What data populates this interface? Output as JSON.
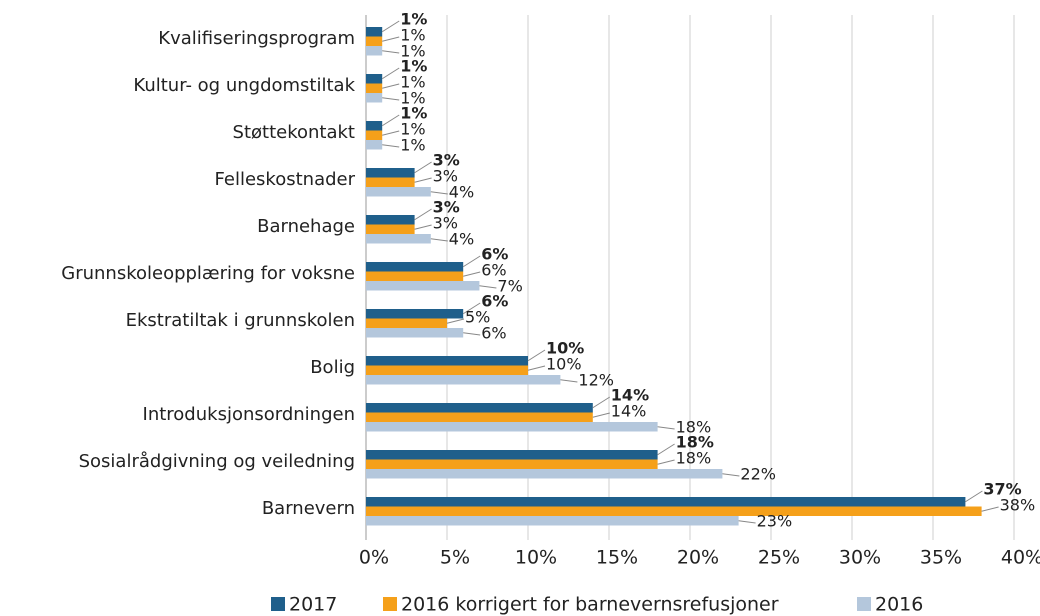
{
  "chart_data": {
    "type": "bar",
    "orientation": "horizontal",
    "categories": [
      "Kvalifiseringsprogram",
      "Kultur- og ungdomstiltak",
      "Støttekontakt",
      "Felleskostnader",
      "Barnehage",
      "Grunnskoleopplæring for voksne",
      "Ekstratiltak i grunnskolen",
      "Bolig",
      "Introduksjonsordningen",
      "Sosialrådgivning og veiledning",
      "Barnevern"
    ],
    "series": [
      {
        "name": "2017",
        "color": "#1f5f8b",
        "values": [
          1,
          1,
          1,
          3,
          3,
          6,
          6,
          10,
          14,
          18,
          37
        ],
        "value_labels": [
          "1%",
          "1%",
          "1%",
          "3%",
          "3%",
          "6%",
          "6%",
          "10%",
          "14%",
          "18%",
          "37%"
        ]
      },
      {
        "name": "2016 korrigert for barnevernsrefusjoner",
        "color": "#f5a01a",
        "values": [
          1,
          1,
          1,
          3,
          3,
          6,
          5,
          10,
          14,
          18,
          38
        ],
        "value_labels": [
          "1%",
          "1%",
          "1%",
          "3%",
          "3%",
          "6%",
          "5%",
          "10%",
          "14%",
          "18%",
          "38%"
        ]
      },
      {
        "name": "2016",
        "color": "#b4c7dc",
        "values": [
          1,
          1,
          1,
          4,
          4,
          7,
          6,
          12,
          18,
          22,
          23
        ],
        "value_labels": [
          "1%",
          "1%",
          "1%",
          "4%",
          "4%",
          "7%",
          "6%",
          "12%",
          "18%",
          "22%",
          "23%"
        ]
      }
    ],
    "xlim": [
      0,
      40
    ],
    "xticks": [
      {
        "value": 0,
        "label": "0%"
      },
      {
        "value": 5,
        "label": "5%"
      },
      {
        "value": 10,
        "label": "10%"
      },
      {
        "value": 15,
        "label": "15%"
      },
      {
        "value": 20,
        "label": "20%"
      },
      {
        "value": 25,
        "label": "25%"
      },
      {
        "value": 30,
        "label": "30%"
      },
      {
        "value": 35,
        "label": "35%"
      },
      {
        "value": 40,
        "label": "40%"
      }
    ],
    "grid": true,
    "legend": "bottom"
  }
}
